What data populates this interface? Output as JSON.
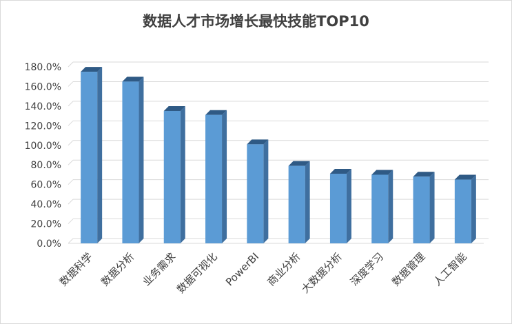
{
  "chart_data": {
    "type": "bar",
    "title": "数据人才市场增长最快技能TOP10",
    "xlabel": "",
    "ylabel": "",
    "categories": [
      "数据科学",
      "数据分析",
      "业务需求",
      "数据可视化",
      "PowerBI",
      "商业分析",
      "大数据分析",
      "深度学习",
      "数据管理",
      "人工智能"
    ],
    "values": [
      175,
      165,
      135,
      131,
      101,
      79,
      71,
      70,
      68,
      65
    ],
    "ylim": [
      0,
      180
    ],
    "yticks": [
      "0.0%",
      "20.0%",
      "40.0%",
      "60.0%",
      "80.0%",
      "100.0%",
      "120.0%",
      "140.0%",
      "160.0%",
      "180.0%"
    ],
    "grid": true,
    "legend": "none",
    "colors": {
      "bar_front": "#5b9bd5",
      "bar_side": "#3f6f9f",
      "bar_top": "#2f5a85",
      "grid": "#d9d9d9",
      "text": "#404040"
    }
  }
}
